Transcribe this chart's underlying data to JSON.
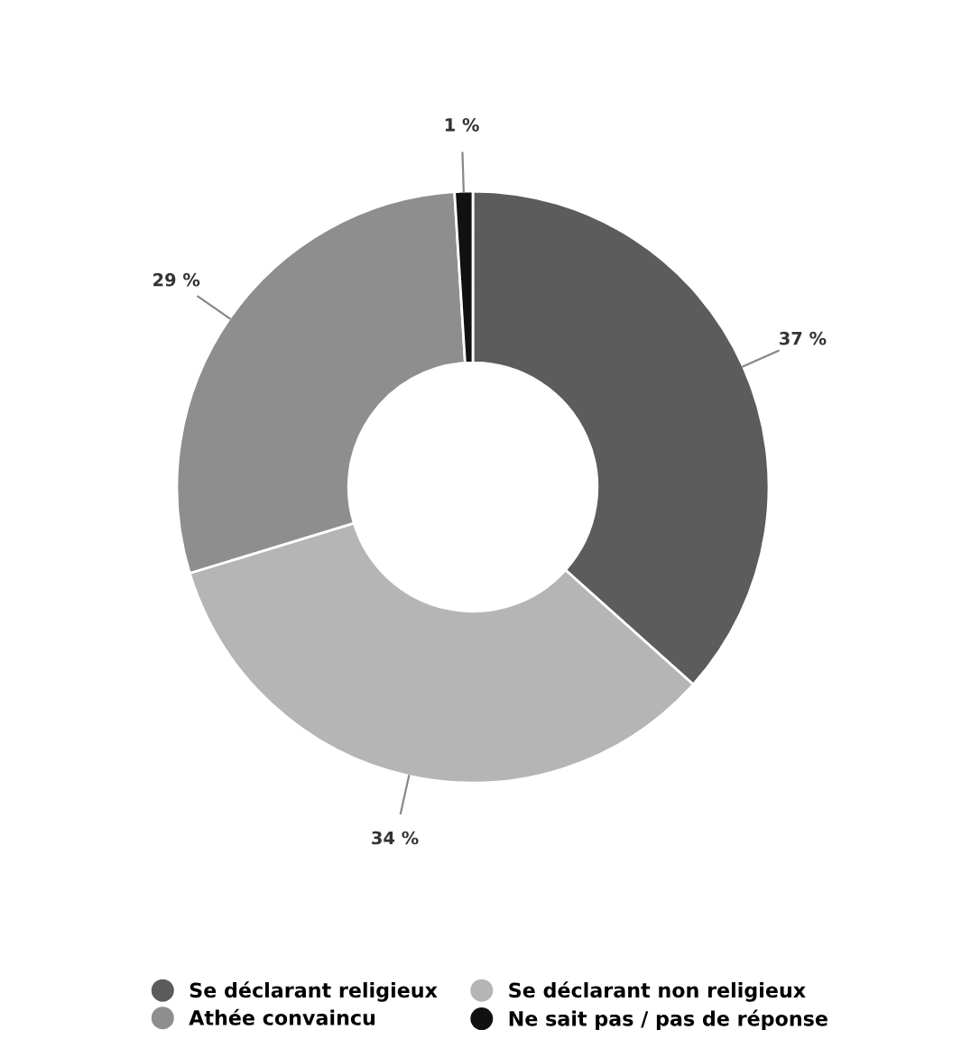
{
  "chart_data": {
    "type": "donut",
    "categories": [
      "Se déclarant religieux",
      "Se déclarant non religieux",
      "Athée convaincu",
      "Ne sait pas / pas de réponse"
    ],
    "values": [
      37,
      34,
      29,
      1
    ],
    "value_labels": [
      "37 %",
      "34 %",
      "29 %",
      "1 %"
    ],
    "colors": [
      "#5c5c5c",
      "#b5b5b5",
      "#8e8e8e",
      "#111111"
    ],
    "legend": "bottom"
  }
}
